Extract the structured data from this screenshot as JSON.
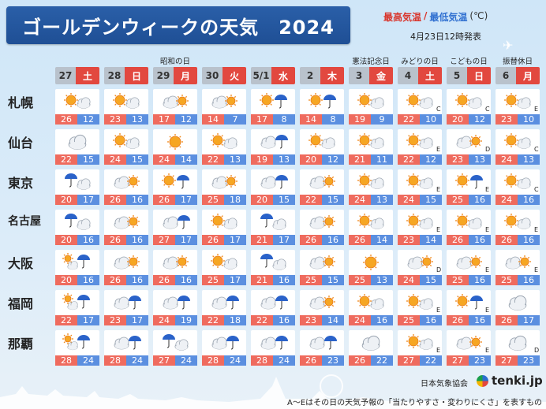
{
  "title": "ゴールデンウィークの天気　2024",
  "legend": {
    "hi": "最高気温",
    "slash": "/",
    "lo": "最低気温",
    "unit": "(℃)"
  },
  "issued": "4月23日12時発表",
  "holidays": [
    {
      "col": 2,
      "label": "昭和の日"
    },
    {
      "col": 6,
      "label": "憲法記念日"
    },
    {
      "col": 7,
      "label": "みどりの日"
    },
    {
      "col": 8,
      "label": "こどもの日"
    },
    {
      "col": 9,
      "label": "振替休日"
    }
  ],
  "days": [
    {
      "num": "27",
      "dow": "土",
      "kind": "sat"
    },
    {
      "num": "28",
      "dow": "日",
      "kind": "sun"
    },
    {
      "num": "29",
      "dow": "月",
      "kind": "mon"
    },
    {
      "num": "30",
      "dow": "火",
      "kind": "tue"
    },
    {
      "num": "5/1",
      "dow": "水",
      "kind": "wed"
    },
    {
      "num": "2",
      "dow": "木",
      "kind": "thu"
    },
    {
      "num": "3",
      "dow": "金",
      "kind": "fri"
    },
    {
      "num": "4",
      "dow": "土",
      "kind": "sat"
    },
    {
      "num": "5",
      "dow": "日",
      "kind": "sun"
    },
    {
      "num": "6",
      "dow": "月",
      "kind": "mon"
    }
  ],
  "cities": [
    {
      "name": "札幌",
      "cells": [
        {
          "icon": "sun-cloud",
          "hi": "26",
          "lo": "12",
          "rel": ""
        },
        {
          "icon": "sun-cloud",
          "hi": "23",
          "lo": "13",
          "rel": ""
        },
        {
          "icon": "cloud-sun",
          "hi": "17",
          "lo": "12",
          "rel": ""
        },
        {
          "icon": "cloud-sun",
          "hi": "14",
          "lo": "7",
          "rel": ""
        },
        {
          "icon": "sun-rain",
          "hi": "17",
          "lo": "8",
          "rel": ""
        },
        {
          "icon": "sun-rain",
          "hi": "14",
          "lo": "8",
          "rel": ""
        },
        {
          "icon": "sun-cloud",
          "hi": "19",
          "lo": "9",
          "rel": ""
        },
        {
          "icon": "sun-cloud",
          "hi": "22",
          "lo": "10",
          "rel": "C"
        },
        {
          "icon": "sun-cloud",
          "hi": "20",
          "lo": "12",
          "rel": "C"
        },
        {
          "icon": "sun-cloud",
          "hi": "23",
          "lo": "10",
          "rel": "E"
        }
      ]
    },
    {
      "name": "仙台",
      "cells": [
        {
          "icon": "cloud",
          "hi": "22",
          "lo": "15",
          "rel": ""
        },
        {
          "icon": "sun-cloud",
          "hi": "24",
          "lo": "15",
          "rel": ""
        },
        {
          "icon": "sun",
          "hi": "24",
          "lo": "14",
          "rel": ""
        },
        {
          "icon": "sun-cloud",
          "hi": "22",
          "lo": "13",
          "rel": ""
        },
        {
          "icon": "cloud-rain",
          "hi": "19",
          "lo": "13",
          "rel": ""
        },
        {
          "icon": "sun-cloud",
          "hi": "20",
          "lo": "12",
          "rel": ""
        },
        {
          "icon": "sun-cloud",
          "hi": "21",
          "lo": "11",
          "rel": ""
        },
        {
          "icon": "sun-cloud",
          "hi": "22",
          "lo": "12",
          "rel": "E"
        },
        {
          "icon": "cloud-sun",
          "hi": "23",
          "lo": "13",
          "rel": "D"
        },
        {
          "icon": "sun-cloud",
          "hi": "24",
          "lo": "13",
          "rel": "C"
        }
      ]
    },
    {
      "name": "東京",
      "cells": [
        {
          "icon": "rain-cloud",
          "hi": "20",
          "lo": "17",
          "rel": ""
        },
        {
          "icon": "cloud-sun",
          "hi": "26",
          "lo": "16",
          "rel": ""
        },
        {
          "icon": "sun-rain",
          "hi": "26",
          "lo": "17",
          "rel": ""
        },
        {
          "icon": "cloud-sun",
          "hi": "25",
          "lo": "18",
          "rel": ""
        },
        {
          "icon": "cloud-rain",
          "hi": "20",
          "lo": "15",
          "rel": ""
        },
        {
          "icon": "cloud-sun",
          "hi": "22",
          "lo": "15",
          "rel": ""
        },
        {
          "icon": "sun-cloud",
          "hi": "24",
          "lo": "13",
          "rel": ""
        },
        {
          "icon": "sun-cloud",
          "hi": "24",
          "lo": "15",
          "rel": "E"
        },
        {
          "icon": "sun-rain",
          "hi": "25",
          "lo": "16",
          "rel": "E"
        },
        {
          "icon": "sun-cloud",
          "hi": "24",
          "lo": "16",
          "rel": "C"
        }
      ]
    },
    {
      "name": "名古屋",
      "cells": [
        {
          "icon": "rain-cloud",
          "hi": "20",
          "lo": "16",
          "rel": ""
        },
        {
          "icon": "cloud-sun",
          "hi": "26",
          "lo": "16",
          "rel": ""
        },
        {
          "icon": "cloud-rain",
          "hi": "27",
          "lo": "17",
          "rel": ""
        },
        {
          "icon": "sun-cloud",
          "hi": "26",
          "lo": "17",
          "rel": ""
        },
        {
          "icon": "rain-cloud",
          "hi": "21",
          "lo": "17",
          "rel": ""
        },
        {
          "icon": "cloud-sun",
          "hi": "26",
          "lo": "16",
          "rel": ""
        },
        {
          "icon": "sun-cloud",
          "hi": "26",
          "lo": "14",
          "rel": ""
        },
        {
          "icon": "sun-cloud",
          "hi": "23",
          "lo": "14",
          "rel": "E"
        },
        {
          "icon": "sun-cloud",
          "hi": "26",
          "lo": "16",
          "rel": "E"
        },
        {
          "icon": "sun-cloud",
          "hi": "26",
          "lo": "16",
          "rel": "E"
        }
      ]
    },
    {
      "name": "大阪",
      "cells": [
        {
          "icon": "sun-rain-cloud",
          "hi": "20",
          "lo": "16",
          "rel": ""
        },
        {
          "icon": "cloud-sun",
          "hi": "26",
          "lo": "16",
          "rel": ""
        },
        {
          "icon": "cloud-sun",
          "hi": "26",
          "lo": "16",
          "rel": ""
        },
        {
          "icon": "sun-cloud",
          "hi": "25",
          "lo": "17",
          "rel": ""
        },
        {
          "icon": "rain-cloud",
          "hi": "21",
          "lo": "16",
          "rel": ""
        },
        {
          "icon": "cloud-sun",
          "hi": "25",
          "lo": "15",
          "rel": ""
        },
        {
          "icon": "sun",
          "hi": "25",
          "lo": "13",
          "rel": ""
        },
        {
          "icon": "cloud-sun",
          "hi": "24",
          "lo": "15",
          "rel": "D"
        },
        {
          "icon": "cloud-sun",
          "hi": "25",
          "lo": "16",
          "rel": "E"
        },
        {
          "icon": "cloud-sun",
          "hi": "25",
          "lo": "16",
          "rel": "E"
        }
      ]
    },
    {
      "name": "福岡",
      "cells": [
        {
          "icon": "sun-rain-cloud",
          "hi": "22",
          "lo": "17",
          "rel": ""
        },
        {
          "icon": "cloud-rain",
          "hi": "23",
          "lo": "17",
          "rel": ""
        },
        {
          "icon": "cloud-rain",
          "hi": "24",
          "lo": "19",
          "rel": ""
        },
        {
          "icon": "cloud-rain",
          "hi": "22",
          "lo": "18",
          "rel": ""
        },
        {
          "icon": "cloud-rain",
          "hi": "22",
          "lo": "16",
          "rel": ""
        },
        {
          "icon": "cloud-sun",
          "hi": "23",
          "lo": "14",
          "rel": ""
        },
        {
          "icon": "sun-cloud",
          "hi": "24",
          "lo": "16",
          "rel": ""
        },
        {
          "icon": "sun-cloud",
          "hi": "25",
          "lo": "16",
          "rel": "E"
        },
        {
          "icon": "sun-rain",
          "hi": "26",
          "lo": "16",
          "rel": "E"
        },
        {
          "icon": "cloud",
          "hi": "26",
          "lo": "17",
          "rel": ""
        }
      ]
    },
    {
      "name": "那覇",
      "cells": [
        {
          "icon": "sun-rain-cloud",
          "hi": "28",
          "lo": "24",
          "rel": ""
        },
        {
          "icon": "cloud-rain",
          "hi": "28",
          "lo": "24",
          "rel": ""
        },
        {
          "icon": "rain-cloud",
          "hi": "27",
          "lo": "24",
          "rel": ""
        },
        {
          "icon": "cloud-rain",
          "hi": "28",
          "lo": "24",
          "rel": ""
        },
        {
          "icon": "cloud-rain",
          "hi": "28",
          "lo": "24",
          "rel": ""
        },
        {
          "icon": "cloud-rain",
          "hi": "26",
          "lo": "23",
          "rel": ""
        },
        {
          "icon": "cloud",
          "hi": "26",
          "lo": "22",
          "rel": ""
        },
        {
          "icon": "sun-cloud",
          "hi": "27",
          "lo": "22",
          "rel": "E"
        },
        {
          "icon": "cloud-sun",
          "hi": "27",
          "lo": "23",
          "rel": "E"
        },
        {
          "icon": "cloud",
          "hi": "27",
          "lo": "23",
          "rel": "D"
        }
      ]
    }
  ],
  "footer_note": "A～Eはその日の天気予報の「当たりやすさ・変わりにくさ」を表すものです。",
  "jma": "日本気象協会",
  "brand": "tenki.jp"
}
